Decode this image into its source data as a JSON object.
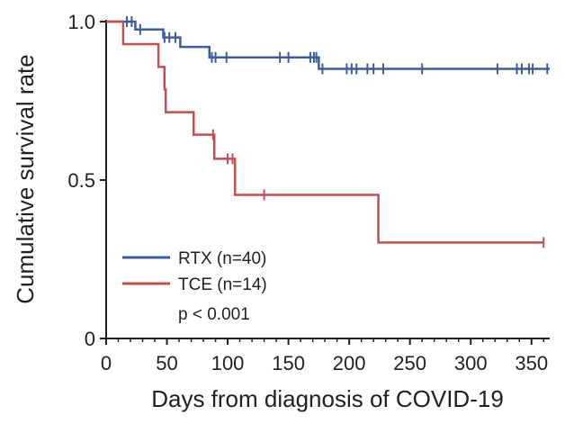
{
  "chart_data": {
    "type": "line",
    "subtype": "kaplan-meier",
    "title": "",
    "xlabel": "Days from diagnosis of COVID-19",
    "ylabel": "Cumulative survival rate",
    "xlim": [
      0,
      365
    ],
    "ylim": [
      0,
      1.0
    ],
    "xticks": [
      0,
      50,
      100,
      150,
      200,
      250,
      300,
      350
    ],
    "yticks": [
      0,
      0.5,
      1.0
    ],
    "ytick_labels": [
      "0",
      "0.5",
      "1.0"
    ],
    "grid": false,
    "legend_position": "bottom-left",
    "annotation": "p < 0.001",
    "series": [
      {
        "name": "RTX (n=40)",
        "color": "#3b5ca0",
        "steps": [
          [
            0,
            1.0
          ],
          [
            24,
            0.975
          ],
          [
            47,
            0.95
          ],
          [
            61,
            0.92
          ],
          [
            85,
            0.887
          ],
          [
            175,
            0.851
          ],
          [
            365,
            0.851
          ]
        ],
        "censor_times": [
          17,
          21,
          28,
          48,
          52,
          57,
          87,
          90,
          99,
          143,
          150,
          168,
          171,
          173,
          178,
          198,
          202,
          206,
          215,
          220,
          228,
          260,
          322,
          338,
          342,
          348,
          351,
          363
        ]
      },
      {
        "name": "TCE (n=14)",
        "color": "#c0504d",
        "steps": [
          [
            0,
            1.0
          ],
          [
            14,
            0.929
          ],
          [
            43,
            0.857
          ],
          [
            48,
            0.786
          ],
          [
            49,
            0.714
          ],
          [
            72,
            0.643
          ],
          [
            89,
            0.567
          ],
          [
            106,
            0.453
          ],
          [
            224,
            0.303
          ],
          [
            360,
            0.303
          ]
        ],
        "censor_times": [
          88,
          100,
          104,
          130,
          360
        ]
      }
    ]
  }
}
